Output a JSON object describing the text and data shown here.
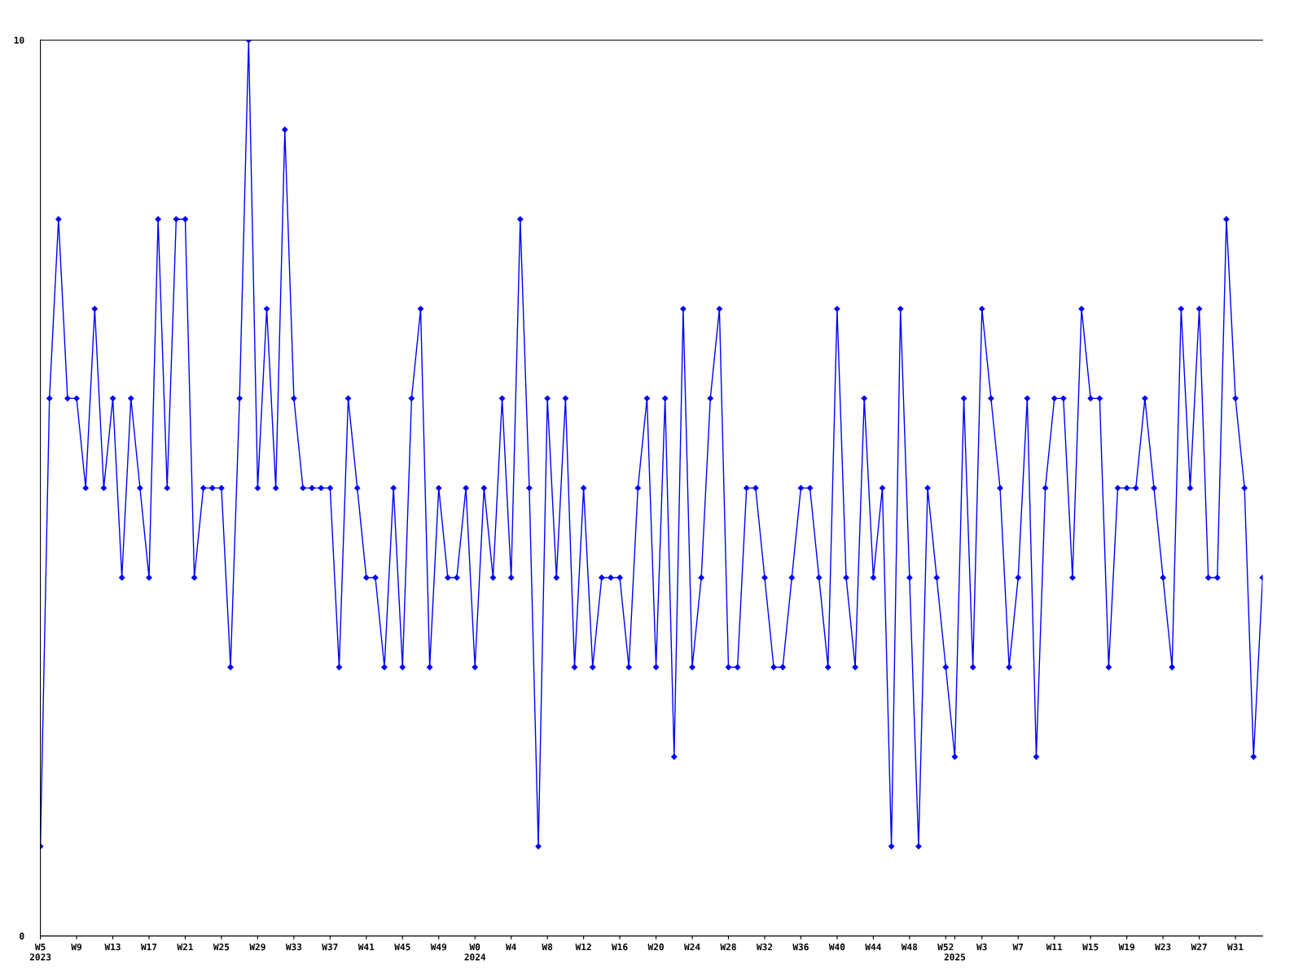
{
  "chart_data": {
    "type": "line",
    "categories": [
      "W5\n2023",
      null,
      null,
      null,
      "W9",
      null,
      null,
      null,
      "W13",
      null,
      null,
      null,
      "W17",
      null,
      null,
      null,
      "W21",
      null,
      null,
      null,
      "W25",
      null,
      null,
      null,
      "W29",
      null,
      null,
      null,
      "W33",
      null,
      null,
      null,
      "W37",
      null,
      null,
      null,
      "W41",
      null,
      null,
      null,
      "W45",
      null,
      null,
      null,
      "W49",
      null,
      null,
      null,
      "W0\n2024",
      null,
      null,
      null,
      "W4",
      null,
      null,
      null,
      "W8",
      null,
      null,
      null,
      "W12",
      null,
      null,
      null,
      "W16",
      null,
      null,
      null,
      "W20",
      null,
      null,
      null,
      "W24",
      null,
      null,
      null,
      "W28",
      null,
      null,
      null,
      "W32",
      null,
      null,
      null,
      "W36",
      null,
      null,
      null,
      "W40",
      null,
      null,
      null,
      "W44",
      null,
      null,
      null,
      "W48",
      null,
      null,
      null,
      "W52",
      "\n2025",
      null,
      null,
      "W3",
      null,
      null,
      null,
      "W7",
      null,
      null,
      null,
      "W11",
      null,
      null,
      null,
      "W15",
      null,
      null,
      null,
      "W19",
      null,
      null,
      null,
      "W23",
      null,
      null,
      null,
      "W27",
      null,
      null,
      null,
      "W31",
      null,
      null,
      null
    ],
    "series": [
      {
        "color": "#0000ff",
        "values": [
          1,
          6,
          8,
          6,
          6,
          5,
          7,
          5,
          6,
          4,
          6,
          5,
          4,
          8,
          5,
          8,
          8,
          4,
          5,
          5,
          5,
          3,
          6,
          10,
          5,
          7,
          5,
          9,
          6,
          5,
          5,
          5,
          5,
          3,
          6,
          5,
          4,
          4,
          3,
          5,
          3,
          6,
          7,
          3,
          5,
          4,
          4,
          5,
          3,
          5,
          4,
          6,
          4,
          8,
          5,
          1,
          6,
          4,
          6,
          3,
          5,
          3,
          4,
          4,
          4,
          3,
          5,
          6,
          3,
          6,
          2,
          7,
          3,
          4,
          6,
          7,
          3,
          3,
          5,
          5,
          4,
          3,
          3,
          4,
          5,
          5,
          4,
          3,
          7,
          4,
          3,
          6,
          4,
          5,
          1,
          7,
          4,
          1,
          5,
          4,
          3,
          2,
          6,
          3,
          7,
          6,
          5,
          3,
          4,
          6,
          2,
          5,
          6,
          6,
          4,
          7,
          6,
          6,
          3,
          5,
          5,
          5,
          6,
          5,
          4,
          3,
          7,
          5,
          7,
          4,
          4,
          8,
          6,
          5,
          2,
          4
        ]
      }
    ],
    "ylim": [
      0,
      10
    ],
    "yticks": [
      0,
      10
    ],
    "marker": "diamond",
    "line_style": "solid",
    "grid": false,
    "legend": false
  }
}
